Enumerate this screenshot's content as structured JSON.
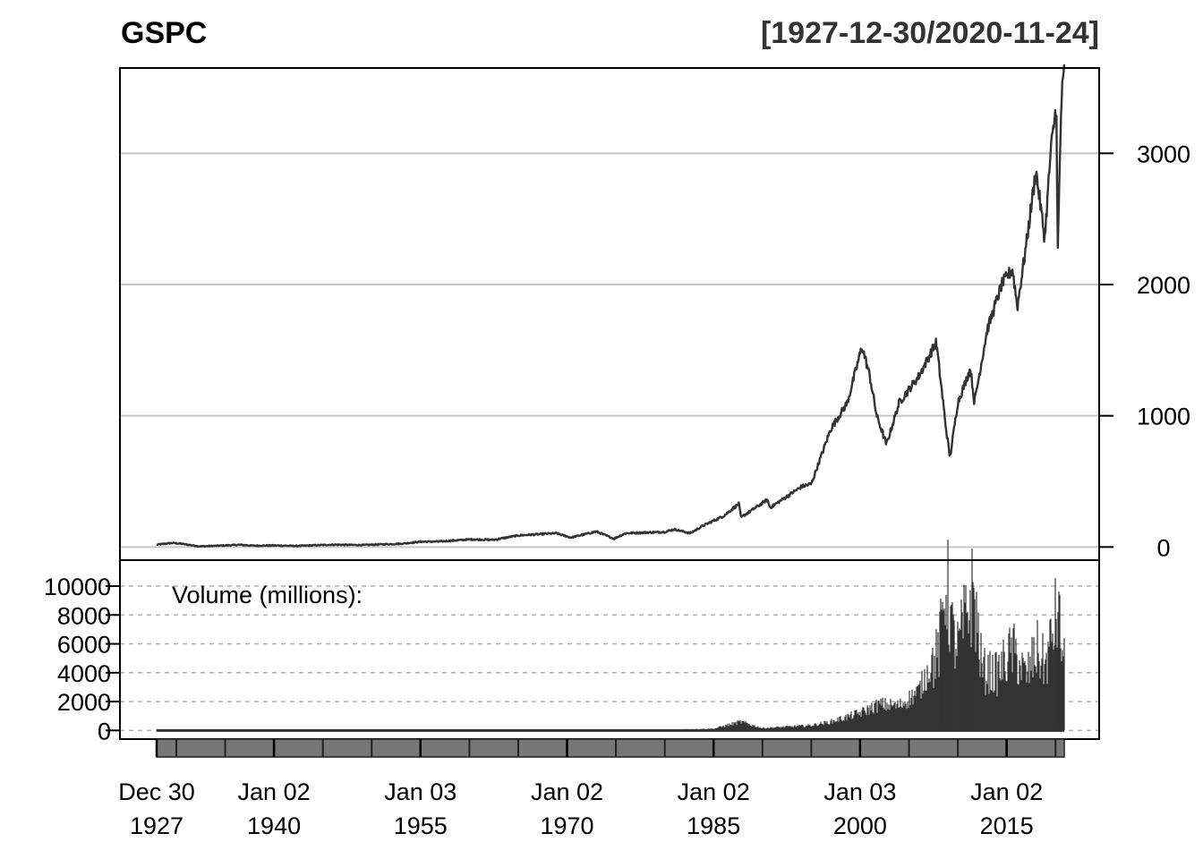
{
  "title": "GSPC",
  "date_range": "[1927-12-30/2020-11-24]",
  "chart_data": [
    {
      "type": "line",
      "series": [
        {
          "values": [
            {
              "x": 1927.99,
              "y": 18
            },
            {
              "x": 1929.6,
              "y": 31
            },
            {
              "x": 1930.5,
              "y": 25
            },
            {
              "x": 1932.4,
              "y": 5
            },
            {
              "x": 1934,
              "y": 9
            },
            {
              "x": 1936.5,
              "y": 17
            },
            {
              "x": 1938,
              "y": 10
            },
            {
              "x": 1940,
              "y": 12
            },
            {
              "x": 1942.3,
              "y": 8
            },
            {
              "x": 1946,
              "y": 18
            },
            {
              "x": 1949,
              "y": 15
            },
            {
              "x": 1953,
              "y": 25
            },
            {
              "x": 1955,
              "y": 40
            },
            {
              "x": 1957,
              "y": 42
            },
            {
              "x": 1960,
              "y": 58
            },
            {
              "x": 1962.5,
              "y": 55
            },
            {
              "x": 1965,
              "y": 88
            },
            {
              "x": 1968.9,
              "y": 105
            },
            {
              "x": 1970.4,
              "y": 72
            },
            {
              "x": 1973,
              "y": 118
            },
            {
              "x": 1974.8,
              "y": 63
            },
            {
              "x": 1976,
              "y": 105
            },
            {
              "x": 1980,
              "y": 115
            },
            {
              "x": 1981,
              "y": 135
            },
            {
              "x": 1982.6,
              "y": 105
            },
            {
              "x": 1984,
              "y": 165
            },
            {
              "x": 1986,
              "y": 235
            },
            {
              "x": 1987.6,
              "y": 330
            },
            {
              "x": 1987.8,
              "y": 225
            },
            {
              "x": 1990.5,
              "y": 360
            },
            {
              "x": 1990.8,
              "y": 300
            },
            {
              "x": 1994,
              "y": 460
            },
            {
              "x": 1995,
              "y": 480
            },
            {
              "x": 1997,
              "y": 900
            },
            {
              "x": 1998.7,
              "y": 1100
            },
            {
              "x": 2000.2,
              "y": 1530
            },
            {
              "x": 2001,
              "y": 1300
            },
            {
              "x": 2001.7,
              "y": 1000
            },
            {
              "x": 2002.7,
              "y": 780
            },
            {
              "x": 2004,
              "y": 1100
            },
            {
              "x": 2006,
              "y": 1300
            },
            {
              "x": 2007.8,
              "y": 1560
            },
            {
              "x": 2008.8,
              "y": 900
            },
            {
              "x": 2009.2,
              "y": 680
            },
            {
              "x": 2010,
              "y": 1100
            },
            {
              "x": 2011.3,
              "y": 1360
            },
            {
              "x": 2011.7,
              "y": 1100
            },
            {
              "x": 2013,
              "y": 1650
            },
            {
              "x": 2014.5,
              "y": 2000
            },
            {
              "x": 2015.6,
              "y": 2120
            },
            {
              "x": 2016.1,
              "y": 1830
            },
            {
              "x": 2017,
              "y": 2300
            },
            {
              "x": 2018,
              "y": 2870
            },
            {
              "x": 2018.9,
              "y": 2350
            },
            {
              "x": 2019.5,
              "y": 3000
            },
            {
              "x": 2020.1,
              "y": 3380
            },
            {
              "x": 2020.22,
              "y": 2200
            },
            {
              "x": 2020.6,
              "y": 3400
            },
            {
              "x": 2020.9,
              "y": 3630
            }
          ]
        }
      ],
      "xlim": [
        1927.99,
        2020.9
      ],
      "ylim": [
        -100,
        3650
      ],
      "y_ticks": [
        0,
        1000,
        2000,
        3000
      ],
      "y_tick_labels": [
        "0",
        "1000",
        "2000",
        "3000"
      ],
      "grid": true,
      "y_axis_side": "right"
    },
    {
      "type": "bar",
      "label": "Volume (millions):",
      "series": [
        {
          "values": [
            {
              "x": 1927.99,
              "y": 5
            },
            {
              "x": 1950,
              "y": 2
            },
            {
              "x": 1960,
              "y": 5
            },
            {
              "x": 1970,
              "y": 15
            },
            {
              "x": 1980,
              "y": 50
            },
            {
              "x": 1985,
              "y": 120
            },
            {
              "x": 1987.8,
              "y": 600
            },
            {
              "x": 1990,
              "y": 160
            },
            {
              "x": 1995,
              "y": 350
            },
            {
              "x": 1997,
              "y": 600
            },
            {
              "x": 2000,
              "y": 1200
            },
            {
              "x": 2002,
              "y": 1800
            },
            {
              "x": 2004,
              "y": 1700
            },
            {
              "x": 2006,
              "y": 2700
            },
            {
              "x": 2007,
              "y": 4200
            },
            {
              "x": 2008.1,
              "y": 6000
            },
            {
              "x": 2008.8,
              "y": 11500
            },
            {
              "x": 2009.5,
              "y": 7000
            },
            {
              "x": 2010,
              "y": 6200
            },
            {
              "x": 2011.6,
              "y": 10500
            },
            {
              "x": 2012.5,
              "y": 4500
            },
            {
              "x": 2014,
              "y": 4200
            },
            {
              "x": 2015.6,
              "y": 6000
            },
            {
              "x": 2016,
              "y": 5500
            },
            {
              "x": 2017,
              "y": 4000
            },
            {
              "x": 2018.1,
              "y": 6000
            },
            {
              "x": 2019,
              "y": 4800
            },
            {
              "x": 2020.2,
              "y": 9000
            },
            {
              "x": 2020.9,
              "y": 5000
            }
          ]
        }
      ],
      "xlim": [
        1927.99,
        2020.9
      ],
      "ylim": [
        -600,
        11800
      ],
      "y_ticks": [
        0,
        2000,
        4000,
        6000,
        8000,
        10000
      ],
      "y_tick_labels": [
        "0",
        "2000",
        "4000",
        "6000",
        "8000",
        "10000"
      ],
      "grid": true,
      "y_axis_side": "left"
    }
  ],
  "x_axis": {
    "ticks": [
      {
        "x": 1927.99,
        "line1": "Dec 30",
        "line2": "1927"
      },
      {
        "x": 1940.0,
        "line1": "Jan 02",
        "line2": "1940"
      },
      {
        "x": 1955.0,
        "line1": "Jan 03",
        "line2": "1955"
      },
      {
        "x": 1970.0,
        "line1": "Jan 02",
        "line2": "1970"
      },
      {
        "x": 1985.0,
        "line1": "Jan 02",
        "line2": "1985"
      },
      {
        "x": 2000.0,
        "line1": "Jan 03",
        "line2": "2000"
      },
      {
        "x": 2015.0,
        "line1": "Jan 02",
        "line2": "2015"
      }
    ],
    "minor_every_years": 5
  },
  "colors": {
    "series": "#333333",
    "grid": "#c8c8c8",
    "dashed_grid": "#b0b0b0",
    "navigator": "#777777"
  }
}
